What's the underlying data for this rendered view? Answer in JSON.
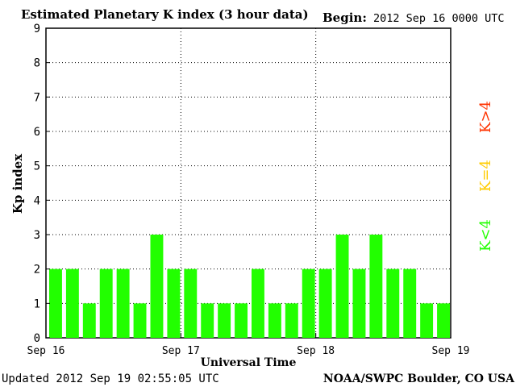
{
  "chart_data": {
    "type": "bar",
    "title": "Estimated Planetary K index (3 hour data)",
    "begin_label": "Begin:",
    "begin_value": "2012 Sep 16 0000 UTC",
    "xlabel": "Universal Time",
    "ylabel": "Kp index",
    "ylim": [
      0,
      9
    ],
    "yticks": [
      "0",
      "1",
      "2",
      "3",
      "4",
      "5",
      "6",
      "7",
      "8",
      "9"
    ],
    "xtick_labels": [
      "Sep 16",
      "Sep 17",
      "Sep 18",
      "Sep 19"
    ],
    "grid": true,
    "values": [
      2,
      2,
      1,
      2,
      2,
      1,
      3,
      2,
      2,
      1,
      1,
      1,
      2,
      1,
      1,
      2,
      2,
      3,
      2,
      3,
      2,
      2,
      1,
      1
    ],
    "bar_color": "#22ff00",
    "legend": [
      {
        "label": "K>4",
        "color": "#ff3300"
      },
      {
        "label": "K=4",
        "color": "#ffcc00"
      },
      {
        "label": "K<4",
        "color": "#22ff00"
      }
    ],
    "legend_placement": "right"
  },
  "footer": {
    "updated": "Updated 2012 Sep 19 02:55:05 UTC",
    "credit": "NOAA/SWPC Boulder, CO USA"
  }
}
